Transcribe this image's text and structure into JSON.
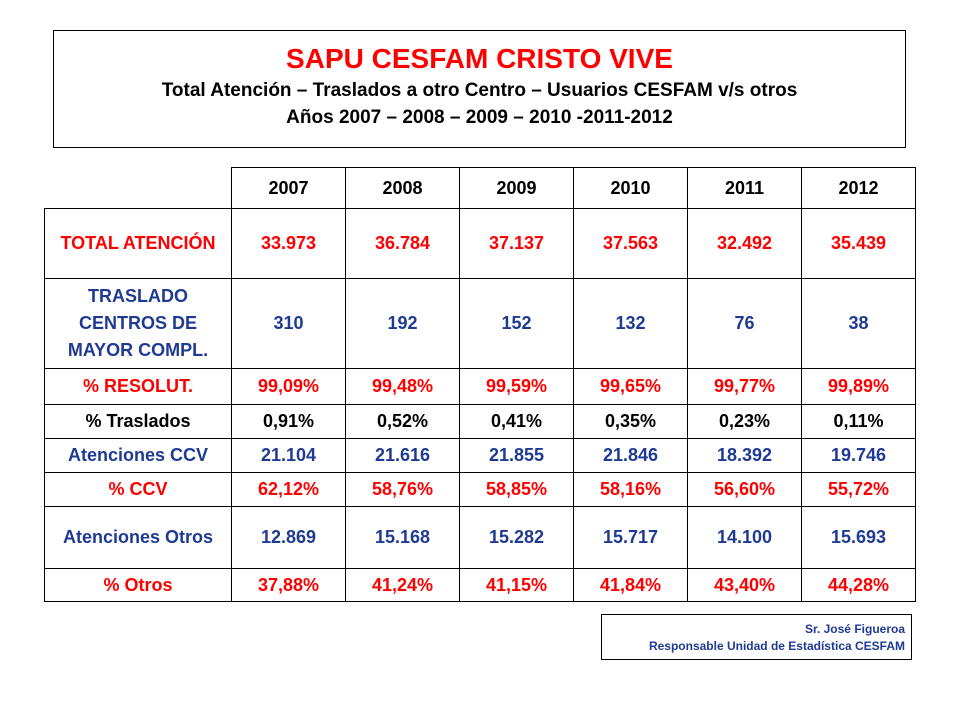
{
  "header": {
    "title": "SAPU CESFAM CRISTO VIVE",
    "subtitle": [
      "Total Atención – Traslados a otro Centro  – Usuarios CESFAM v/s otros",
      "Años  2007 – 2008 – 2009 – 2010 -2011-2012"
    ]
  },
  "table": {
    "columns": [
      "2007",
      "2008",
      "2009",
      "2010",
      "2011",
      "2012"
    ],
    "rows": [
      {
        "label": "TOTAL ATENCIÓN",
        "cells": [
          "33.973",
          "36.784",
          "37.137",
          "37.563",
          "32.492",
          "35.439"
        ]
      },
      {
        "label": "TRASLADO CENTROS DE MAYOR COMPL.",
        "cells": [
          "310",
          "192",
          "152",
          "132",
          "76",
          "38"
        ]
      },
      {
        "label": "% RESOLUT.",
        "cells": [
          "99,09%",
          "99,48%",
          "99,59%",
          "99,65%",
          "99,77%",
          "99,89%"
        ]
      },
      {
        "label": "% Traslados",
        "cells": [
          "0,91%",
          "0,52%",
          "0,41%",
          "0,35%",
          "0,23%",
          "0,11%"
        ]
      },
      {
        "label": "Atenciones CCV",
        "cells": [
          "21.104",
          "21.616",
          "21.855",
          "21.846",
          "18.392",
          "19.746"
        ]
      },
      {
        "label": "% CCV",
        "cells": [
          "62,12%",
          "58,76%",
          "58,85%",
          "58,16%",
          "56,60%",
          "55,72%"
        ]
      },
      {
        "label": "Atenciones Otros",
        "cells": [
          "12.869",
          "15.168",
          "15.282",
          "15.717",
          "14.100",
          "15.693"
        ]
      },
      {
        "label": "% Otros",
        "cells": [
          "37,88%",
          "41,24%",
          "41,15%",
          "41,84%",
          "43,40%",
          "44,28%"
        ]
      }
    ]
  },
  "footer": {
    "name": "Sr. José Figueroa",
    "role": "Responsable Unidad de Estadística CESFAM"
  }
}
